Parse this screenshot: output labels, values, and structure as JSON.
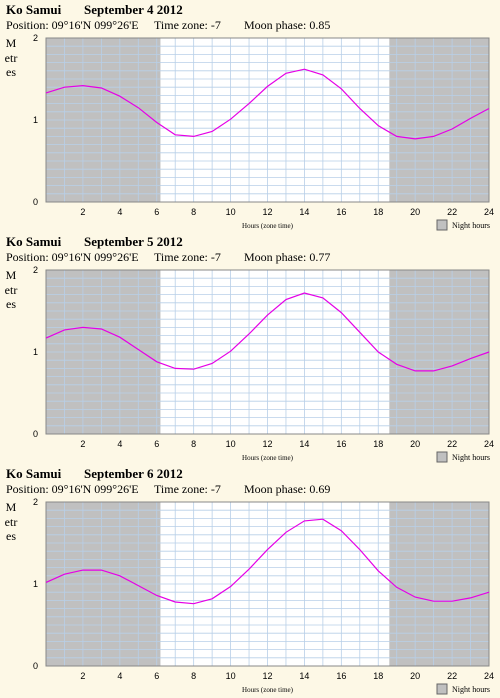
{
  "location": "Ko Samui",
  "position_text": "Position: 09°16'N 099°26'E",
  "timezone_text": "Time zone: -7",
  "ylabel": "Metres",
  "xlabel": "Hours (zone time)",
  "legend_label": "Night hours",
  "panels": [
    {
      "date": "September 4 2012",
      "moon_text": "Moon phase: 0.85"
    },
    {
      "date": "September 5 2012",
      "moon_text": "Moon phase: 0.77"
    },
    {
      "date": "September 6 2012",
      "moon_text": "Moon phase: 0.69"
    }
  ],
  "colors": {
    "background": "#fdf8e6",
    "night": "#c0c0c0",
    "grid": "#b8cfe8",
    "curve": "#e600e6"
  },
  "chart_data": [
    {
      "type": "line",
      "title": "Ko Samui September 4 2012",
      "xlabel": "Hours (zone time)",
      "ylabel": "Metres",
      "xlim": [
        0,
        24
      ],
      "ylim": [
        0,
        2
      ],
      "xticks": [
        2,
        4,
        6,
        8,
        10,
        12,
        14,
        16,
        18,
        20,
        22,
        24
      ],
      "yticks": [
        0,
        1,
        2
      ],
      "night_hours": [
        [
          0,
          6.2
        ],
        [
          18.6,
          24
        ]
      ],
      "series": [
        {
          "x": [
            0,
            1,
            2,
            3,
            4,
            5,
            6,
            7,
            8,
            9,
            10,
            11,
            12,
            13,
            14,
            15,
            16,
            17,
            18,
            19,
            20,
            21,
            22,
            23,
            24
          ],
          "values": [
            1.33,
            1.4,
            1.42,
            1.39,
            1.29,
            1.15,
            0.97,
            0.82,
            0.8,
            0.86,
            1.01,
            1.2,
            1.41,
            1.57,
            1.62,
            1.55,
            1.38,
            1.14,
            0.93,
            0.8,
            0.77,
            0.8,
            0.89,
            1.02,
            1.14
          ]
        }
      ]
    },
    {
      "type": "line",
      "title": "Ko Samui September 5 2012",
      "xlabel": "Hours (zone time)",
      "ylabel": "Metres",
      "xlim": [
        0,
        24
      ],
      "ylim": [
        0,
        2
      ],
      "xticks": [
        2,
        4,
        6,
        8,
        10,
        12,
        14,
        16,
        18,
        20,
        22,
        24
      ],
      "yticks": [
        0,
        1,
        2
      ],
      "night_hours": [
        [
          0,
          6.2
        ],
        [
          18.6,
          24
        ]
      ],
      "series": [
        {
          "x": [
            0,
            1,
            2,
            3,
            4,
            5,
            6,
            7,
            8,
            9,
            10,
            11,
            12,
            13,
            14,
            15,
            16,
            17,
            18,
            19,
            20,
            21,
            22,
            23,
            24
          ],
          "values": [
            1.17,
            1.27,
            1.3,
            1.28,
            1.18,
            1.03,
            0.88,
            0.8,
            0.79,
            0.86,
            1.01,
            1.22,
            1.45,
            1.64,
            1.72,
            1.66,
            1.48,
            1.24,
            1.0,
            0.85,
            0.77,
            0.77,
            0.83,
            0.92,
            1.0
          ]
        }
      ]
    },
    {
      "type": "line",
      "title": "Ko Samui September 6 2012",
      "xlabel": "Hours (zone time)",
      "ylabel": "Metres",
      "xlim": [
        0,
        24
      ],
      "ylim": [
        0,
        2
      ],
      "xticks": [
        2,
        4,
        6,
        8,
        10,
        12,
        14,
        16,
        18,
        20,
        22,
        24
      ],
      "yticks": [
        0,
        1,
        2
      ],
      "night_hours": [
        [
          0,
          6.2
        ],
        [
          18.6,
          24
        ]
      ],
      "series": [
        {
          "x": [
            0,
            1,
            2,
            3,
            4,
            5,
            6,
            7,
            8,
            9,
            10,
            11,
            12,
            13,
            14,
            15,
            16,
            17,
            18,
            19,
            20,
            21,
            22,
            23,
            24
          ],
          "values": [
            1.02,
            1.12,
            1.17,
            1.17,
            1.1,
            0.98,
            0.86,
            0.78,
            0.76,
            0.82,
            0.97,
            1.18,
            1.42,
            1.63,
            1.77,
            1.79,
            1.65,
            1.42,
            1.16,
            0.96,
            0.84,
            0.79,
            0.79,
            0.83,
            0.9
          ]
        }
      ]
    }
  ]
}
